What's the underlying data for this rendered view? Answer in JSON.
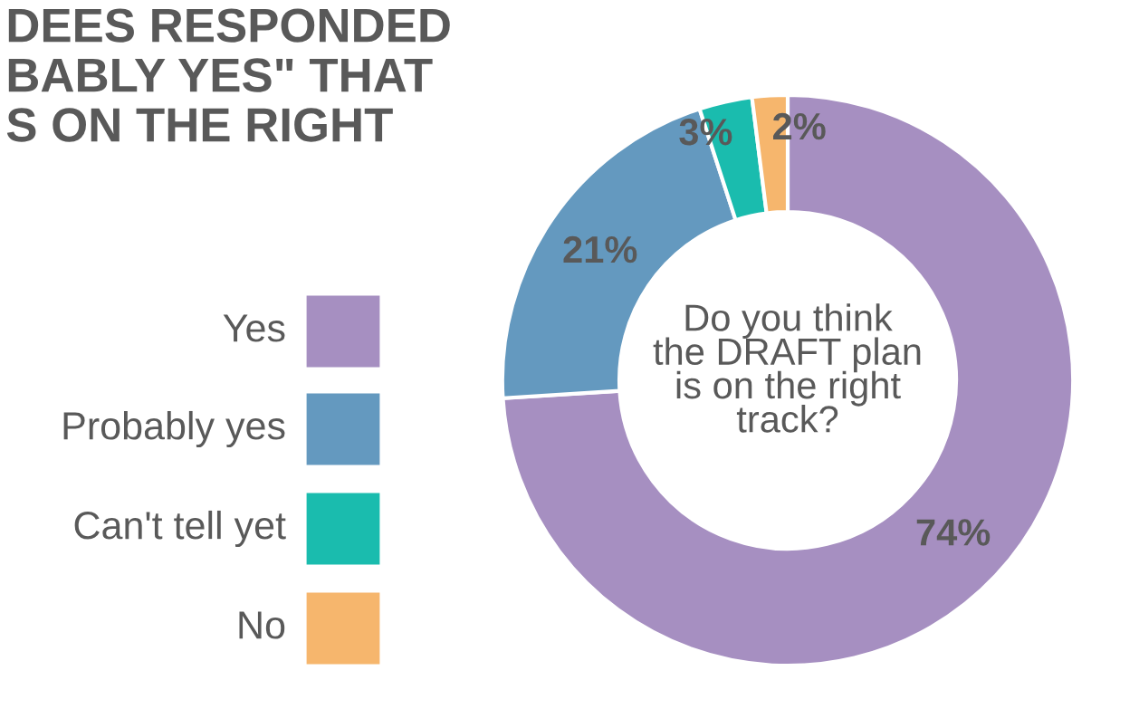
{
  "chart_data": {
    "type": "donut",
    "title": "DEES RESPONDED\nBABLY YES\" THAT\nS ON THE RIGHT",
    "categories": [
      "Yes",
      "Probably yes",
      "Can't tell yet",
      "No"
    ],
    "values": [
      74,
      21,
      3,
      2
    ],
    "colors": [
      "#a68fc1",
      "#6499bf",
      "#1abcae",
      "#f6b66d"
    ],
    "value_labels": [
      "74%",
      "21%",
      "3%",
      "2%"
    ],
    "annotations": [
      "Do you think\nthe DRAFT plan\nis on the right\ntrack?"
    ],
    "legend": "left"
  }
}
